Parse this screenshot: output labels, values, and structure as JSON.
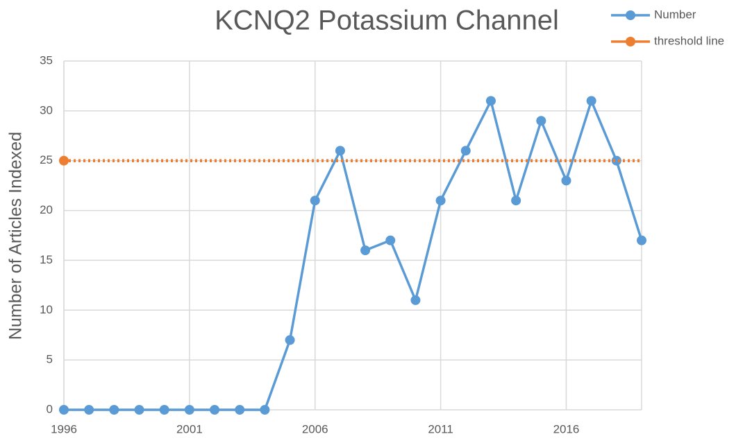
{
  "chart_data": {
    "type": "line",
    "title": "KCNQ2 Potassium Channel",
    "y_label": "Number of Articles Indexed",
    "x": [
      1996,
      1997,
      1998,
      1999,
      2000,
      2001,
      2002,
      2003,
      2004,
      2005,
      2006,
      2007,
      2008,
      2009,
      2010,
      2011,
      2012,
      2013,
      2014,
      2015,
      2016,
      2017,
      2018,
      2019
    ],
    "series": [
      {
        "name": "Number",
        "color": "#5b9bd5",
        "values": [
          0,
          0,
          0,
          0,
          0,
          0,
          0,
          0,
          0,
          7,
          21,
          26,
          16,
          17,
          11,
          21,
          26,
          31,
          21,
          29,
          23,
          31,
          25,
          17
        ]
      },
      {
        "name": "threshold line",
        "color": "#ed7d31",
        "values": [
          25,
          25,
          25,
          25,
          25,
          25,
          25,
          25,
          25,
          25,
          25,
          25,
          25,
          25,
          25,
          25,
          25,
          25,
          25,
          25,
          25,
          25,
          25,
          25
        ]
      }
    ],
    "xlim": [
      1996,
      2019
    ],
    "xticks": [
      1996,
      2001,
      2006,
      2011,
      2016
    ],
    "ylim": [
      0,
      35
    ],
    "yticks": [
      0,
      5,
      10,
      15,
      20,
      25,
      30,
      35
    ],
    "grid": true,
    "legend": "top-right"
  }
}
